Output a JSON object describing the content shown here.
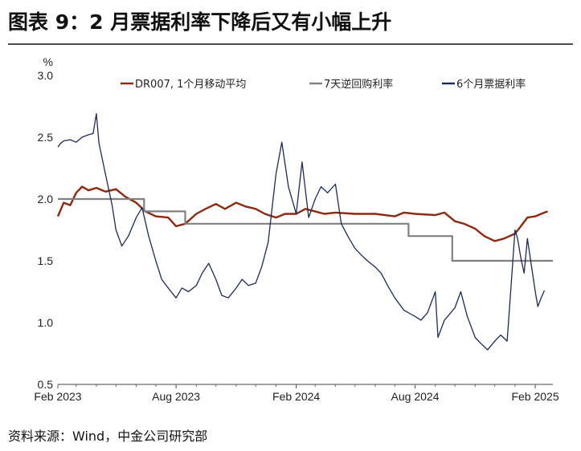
{
  "title": "图表 9：2 月票据利率下降后又有小幅上升",
  "source": "资料来源：Wind，中金公司研究部",
  "chart_data": {
    "type": "line",
    "unit_label": "%",
    "ylim": [
      0.5,
      3.0
    ],
    "yticks": [
      "0.5",
      "1.0",
      "1.5",
      "2.0",
      "2.5",
      "3.0"
    ],
    "xlim": [
      "2023-02-01",
      "2025-02-28"
    ],
    "xticks": [
      {
        "date": "2023-02-01",
        "label": "Feb 2023"
      },
      {
        "date": "2023-08-01",
        "label": "Aug 2023"
      },
      {
        "date": "2024-02-01",
        "label": "Feb 2024"
      },
      {
        "date": "2024-08-01",
        "label": "Aug 2024"
      },
      {
        "date": "2025-02-01",
        "label": "Feb 2025"
      }
    ],
    "grid": false,
    "legend_position": "top",
    "series": [
      {
        "name": "DR007, 1个月移动平均",
        "color": "#8B2A0E",
        "points": [
          [
            "2023-02-01",
            1.86
          ],
          [
            "2023-02-10",
            1.97
          ],
          [
            "2023-02-20",
            1.95
          ],
          [
            "2023-03-01",
            2.05
          ],
          [
            "2023-03-10",
            2.1
          ],
          [
            "2023-03-20",
            2.07
          ],
          [
            "2023-04-01",
            2.09
          ],
          [
            "2023-04-15",
            2.06
          ],
          [
            "2023-05-01",
            2.08
          ],
          [
            "2023-05-15",
            2.02
          ],
          [
            "2023-06-01",
            1.97
          ],
          [
            "2023-06-15",
            1.9
          ],
          [
            "2023-07-01",
            1.86
          ],
          [
            "2023-07-20",
            1.85
          ],
          [
            "2023-08-01",
            1.78
          ],
          [
            "2023-08-15",
            1.8
          ],
          [
            "2023-09-01",
            1.88
          ],
          [
            "2023-09-15",
            1.92
          ],
          [
            "2023-10-01",
            1.96
          ],
          [
            "2023-10-15",
            1.92
          ],
          [
            "2023-11-01",
            1.97
          ],
          [
            "2023-11-15",
            1.94
          ],
          [
            "2023-12-01",
            1.92
          ],
          [
            "2023-12-15",
            1.88
          ],
          [
            "2024-01-01",
            1.85
          ],
          [
            "2024-01-15",
            1.88
          ],
          [
            "2024-02-01",
            1.88
          ],
          [
            "2024-02-15",
            1.92
          ],
          [
            "2024-03-01",
            1.9
          ],
          [
            "2024-03-15",
            1.88
          ],
          [
            "2024-04-01",
            1.89
          ],
          [
            "2024-05-01",
            1.88
          ],
          [
            "2024-06-01",
            1.88
          ],
          [
            "2024-07-01",
            1.86
          ],
          [
            "2024-07-15",
            1.89
          ],
          [
            "2024-08-01",
            1.88
          ],
          [
            "2024-09-01",
            1.87
          ],
          [
            "2024-09-15",
            1.89
          ],
          [
            "2024-10-01",
            1.82
          ],
          [
            "2024-10-15",
            1.8
          ],
          [
            "2024-11-01",
            1.76
          ],
          [
            "2024-11-15",
            1.7
          ],
          [
            "2024-12-01",
            1.66
          ],
          [
            "2024-12-15",
            1.68
          ],
          [
            "2025-01-01",
            1.72
          ],
          [
            "2025-01-10",
            1.78
          ],
          [
            "2025-01-20",
            1.85
          ],
          [
            "2025-02-01",
            1.86
          ],
          [
            "2025-02-10",
            1.88
          ],
          [
            "2025-02-20",
            1.9
          ]
        ]
      },
      {
        "name": "7天逆回购利率",
        "color": "#808080",
        "points": [
          [
            "2023-02-01",
            2.0
          ],
          [
            "2023-06-13",
            2.0
          ],
          [
            "2023-06-13",
            1.9
          ],
          [
            "2023-08-15",
            1.9
          ],
          [
            "2023-08-15",
            1.8
          ],
          [
            "2024-07-22",
            1.8
          ],
          [
            "2024-07-22",
            1.7
          ],
          [
            "2024-09-27",
            1.7
          ],
          [
            "2024-09-27",
            1.5
          ],
          [
            "2025-02-28",
            1.5
          ]
        ]
      },
      {
        "name": "6个月票据利率",
        "color": "#1B2A5A",
        "points": [
          [
            "2023-02-01",
            2.42
          ],
          [
            "2023-02-05",
            2.45
          ],
          [
            "2023-02-10",
            2.47
          ],
          [
            "2023-02-20",
            2.48
          ],
          [
            "2023-03-01",
            2.46
          ],
          [
            "2023-03-10",
            2.5
          ],
          [
            "2023-03-20",
            2.52
          ],
          [
            "2023-03-27",
            2.53
          ],
          [
            "2023-04-01",
            2.69
          ],
          [
            "2023-04-05",
            2.45
          ],
          [
            "2023-04-15",
            2.2
          ],
          [
            "2023-04-25",
            1.95
          ],
          [
            "2023-05-01",
            1.75
          ],
          [
            "2023-05-10",
            1.62
          ],
          [
            "2023-05-20",
            1.7
          ],
          [
            "2023-06-01",
            1.85
          ],
          [
            "2023-06-10",
            1.93
          ],
          [
            "2023-06-20",
            1.7
          ],
          [
            "2023-07-01",
            1.5
          ],
          [
            "2023-07-10",
            1.35
          ],
          [
            "2023-07-20",
            1.28
          ],
          [
            "2023-08-01",
            1.2
          ],
          [
            "2023-08-10",
            1.28
          ],
          [
            "2023-08-20",
            1.25
          ],
          [
            "2023-09-01",
            1.3
          ],
          [
            "2023-09-10",
            1.4
          ],
          [
            "2023-09-20",
            1.48
          ],
          [
            "2023-10-01",
            1.35
          ],
          [
            "2023-10-10",
            1.22
          ],
          [
            "2023-10-20",
            1.2
          ],
          [
            "2023-11-01",
            1.28
          ],
          [
            "2023-11-10",
            1.35
          ],
          [
            "2023-11-20",
            1.3
          ],
          [
            "2023-12-01",
            1.32
          ],
          [
            "2023-12-10",
            1.45
          ],
          [
            "2023-12-20",
            1.65
          ],
          [
            "2024-01-01",
            2.2
          ],
          [
            "2024-01-10",
            2.46
          ],
          [
            "2024-01-20",
            2.1
          ],
          [
            "2024-02-01",
            1.88
          ],
          [
            "2024-02-10",
            2.3
          ],
          [
            "2024-02-20",
            1.85
          ],
          [
            "2024-03-01",
            2.0
          ],
          [
            "2024-03-10",
            2.1
          ],
          [
            "2024-03-20",
            2.05
          ],
          [
            "2024-04-01",
            2.12
          ],
          [
            "2024-04-10",
            1.8
          ],
          [
            "2024-04-20",
            1.7
          ],
          [
            "2024-05-01",
            1.6
          ],
          [
            "2024-05-10",
            1.55
          ],
          [
            "2024-05-20",
            1.5
          ],
          [
            "2024-06-01",
            1.45
          ],
          [
            "2024-06-10",
            1.4
          ],
          [
            "2024-06-20",
            1.3
          ],
          [
            "2024-07-01",
            1.2
          ],
          [
            "2024-07-15",
            1.1
          ],
          [
            "2024-08-01",
            1.05
          ],
          [
            "2024-08-10",
            1.02
          ],
          [
            "2024-08-20",
            1.08
          ],
          [
            "2024-09-01",
            1.25
          ],
          [
            "2024-09-05",
            0.88
          ],
          [
            "2024-09-15",
            1.02
          ],
          [
            "2024-10-01",
            1.12
          ],
          [
            "2024-10-10",
            1.25
          ],
          [
            "2024-10-20",
            1.05
          ],
          [
            "2024-11-01",
            0.88
          ],
          [
            "2024-11-10",
            0.83
          ],
          [
            "2024-11-20",
            0.78
          ],
          [
            "2024-12-01",
            0.85
          ],
          [
            "2024-12-10",
            0.9
          ],
          [
            "2024-12-20",
            0.85
          ],
          [
            "2025-01-01",
            1.75
          ],
          [
            "2025-01-05",
            1.68
          ],
          [
            "2025-01-10",
            1.52
          ],
          [
            "2025-01-15",
            1.4
          ],
          [
            "2025-01-20",
            1.68
          ],
          [
            "2025-01-25",
            1.5
          ],
          [
            "2025-02-01",
            1.25
          ],
          [
            "2025-02-05",
            1.13
          ],
          [
            "2025-02-10",
            1.2
          ],
          [
            "2025-02-15",
            1.26
          ]
        ]
      }
    ]
  }
}
